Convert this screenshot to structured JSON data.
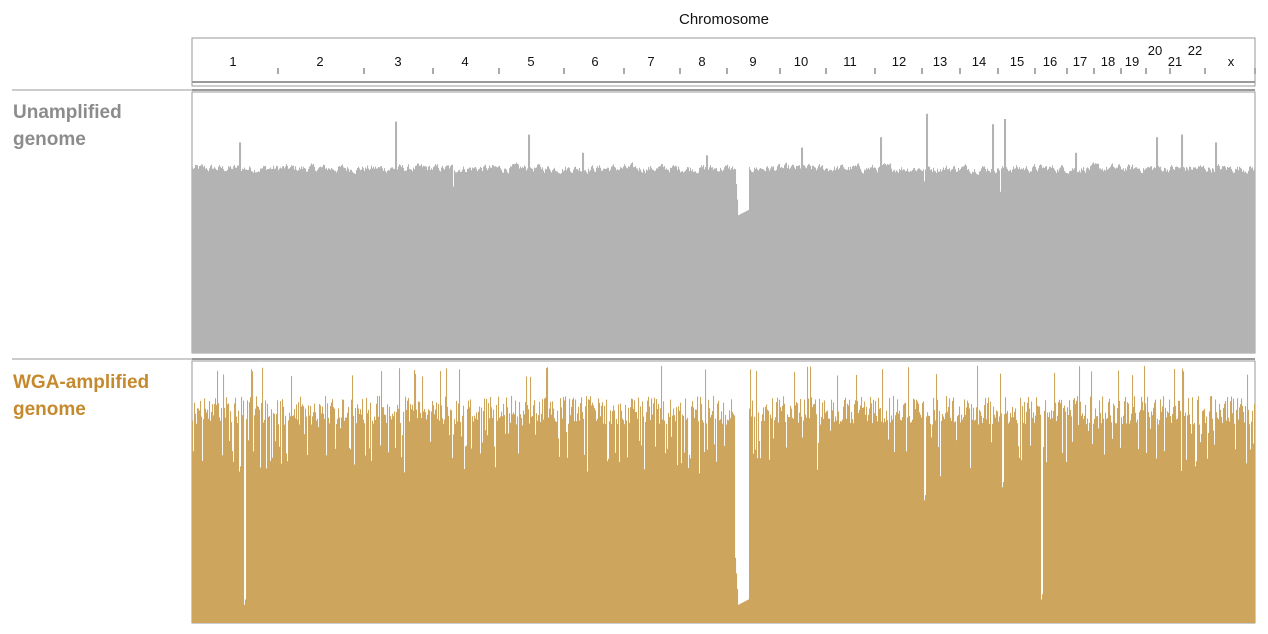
{
  "chart_data": {
    "type": "bar",
    "title": "Chromosome",
    "xlabel": "Chromosome",
    "ylabel": "",
    "chromosomes": [
      "1",
      "2",
      "3",
      "4",
      "5",
      "6",
      "7",
      "8",
      "9",
      "10",
      "11",
      "12",
      "13",
      "14",
      "15",
      "16",
      "17",
      "18",
      "19",
      "20",
      "21",
      "22",
      "x"
    ],
    "ylim": [
      0,
      1
    ],
    "series": [
      {
        "name": "Unamplified genome",
        "color": "#b3b3b3",
        "label_color": "#8c8c8c",
        "baseline": 0.71,
        "noise": 0.025,
        "spikes": [
          {
            "chromosome": "1",
            "pos": 0.55,
            "value": 0.81
          },
          {
            "chromosome": "3",
            "pos": 0.45,
            "value": 0.89
          },
          {
            "chromosome": "5",
            "pos": 0.45,
            "value": 0.84
          },
          {
            "chromosome": "6",
            "pos": 0.3,
            "value": 0.77
          },
          {
            "chromosome": "8",
            "pos": 0.55,
            "value": 0.76
          },
          {
            "chromosome": "10",
            "pos": 0.45,
            "value": 0.79
          },
          {
            "chromosome": "12",
            "pos": 0.1,
            "value": 0.83
          },
          {
            "chromosome": "13",
            "pos": 0.1,
            "value": 0.92
          },
          {
            "chromosome": "14",
            "pos": 0.85,
            "value": 0.88
          },
          {
            "chromosome": "15",
            "pos": 0.15,
            "value": 0.9
          },
          {
            "chromosome": "17",
            "pos": 0.3,
            "value": 0.77
          },
          {
            "chromosome": "20",
            "pos": 0.4,
            "value": 0.83
          },
          {
            "chromosome": "21",
            "pos": 0.3,
            "value": 0.84
          },
          {
            "chromosome": "22",
            "pos": 0.2,
            "value": 0.81
          }
        ],
        "dips": [
          {
            "chromosome": "1",
            "pos": 0.55,
            "value": 0.69
          },
          {
            "chromosome": "4",
            "pos": 0.3,
            "value": 0.64
          },
          {
            "chromosome": "9",
            "from": 0.2,
            "to": 0.4,
            "value": 0.53
          },
          {
            "chromosome": "13",
            "pos": 0.05,
            "value": 0.66
          },
          {
            "chromosome": "15",
            "pos": 0.05,
            "value": 0.62
          }
        ]
      },
      {
        "name": "WGA-amplified genome",
        "color": "#cea55c",
        "label_color": "#c58a2e",
        "baseline": 0.87,
        "noise": 0.11,
        "spikes": [],
        "dips": [
          {
            "chromosome": "1",
            "pos": 0.6,
            "value": 0.07
          },
          {
            "chromosome": "1",
            "pos": 0.55,
            "value": 0.58
          },
          {
            "chromosome": "9",
            "from": 0.2,
            "to": 0.4,
            "value": 0.07
          },
          {
            "chromosome": "13",
            "pos": 0.05,
            "value": 0.47
          },
          {
            "chromosome": "15",
            "pos": 0.1,
            "value": 0.52
          },
          {
            "chromosome": "16",
            "pos": 0.2,
            "value": 0.09
          },
          {
            "chromosome": "21",
            "pos": 0.7,
            "value": 0.6
          }
        ]
      }
    ]
  }
}
